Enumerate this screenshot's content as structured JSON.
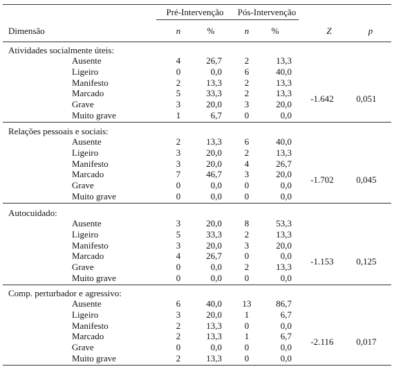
{
  "header": {
    "groups": [
      "Pré-Intervenção",
      "Pós-Intervenção"
    ],
    "columns": [
      "Dimensão",
      "n",
      "%",
      "n",
      "%",
      "Z",
      "p"
    ]
  },
  "sections": [
    {
      "title": "Atividades socialmente úteis:",
      "rows": [
        [
          "Ausente",
          "4",
          "26,7",
          "2",
          "13,3"
        ],
        [
          "Ligeiro",
          "0",
          "0,0",
          "6",
          "40,0"
        ],
        [
          "Manifesto",
          "2",
          "13,3",
          "2",
          "13,3"
        ],
        [
          "Marcado",
          "5",
          "33,3",
          "2",
          "13,3"
        ],
        [
          "Grave",
          "3",
          "20,0",
          "3",
          "20,0"
        ],
        [
          "Muito grave",
          "1",
          "6,7",
          "0",
          "0,0"
        ]
      ],
      "z": "-1.642",
      "p": "0,051"
    },
    {
      "title": "Relações pessoais e sociais:",
      "rows": [
        [
          "Ausente",
          "2",
          "13,3",
          "6",
          "40,0"
        ],
        [
          "Ligeiro",
          "3",
          "20,0",
          "2",
          "13,3"
        ],
        [
          "Manifesto",
          "3",
          "20,0",
          "4",
          "26,7"
        ],
        [
          "Marcado",
          "7",
          "46,7",
          "3",
          "20,0"
        ],
        [
          "Grave",
          "0",
          "0,0",
          "0",
          "0,0"
        ],
        [
          "Muito grave",
          "0",
          "0,0",
          "0",
          "0,0"
        ]
      ],
      "z": "-1.702",
      "p": "0,045"
    },
    {
      "title": "Autocuidado:",
      "rows": [
        [
          "Ausente",
          "3",
          "20,0",
          "8",
          "53,3"
        ],
        [
          "Ligeiro",
          "5",
          "33,3",
          "2",
          "13,3"
        ],
        [
          "Manifesto",
          "3",
          "20,0",
          "3",
          "20,0"
        ],
        [
          "Marcado",
          "4",
          "26,7",
          "0",
          "0,0"
        ],
        [
          "Grave",
          "0",
          "0,0",
          "2",
          "13,3"
        ],
        [
          "Muito grave",
          "0",
          "0,0",
          "0",
          "0,0"
        ]
      ],
      "z": "-1.153",
      "p": "0,125"
    },
    {
      "title": "Comp. perturbador e agressivo:",
      "rows": [
        [
          "Ausente",
          "6",
          "40,0",
          "13",
          "86,7"
        ],
        [
          "Ligeiro",
          "3",
          "20,0",
          "1",
          "6,7"
        ],
        [
          "Manifesto",
          "2",
          "13,3",
          "0",
          "0,0"
        ],
        [
          "Marcado",
          "2",
          "13,3",
          "1",
          "6,7"
        ],
        [
          "Grave",
          "0",
          "0,0",
          "0",
          "0,0"
        ],
        [
          "Muito grave",
          "2",
          "13,3",
          "0",
          "0,0"
        ]
      ],
      "z": "-2.116",
      "p": "0,017"
    }
  ]
}
